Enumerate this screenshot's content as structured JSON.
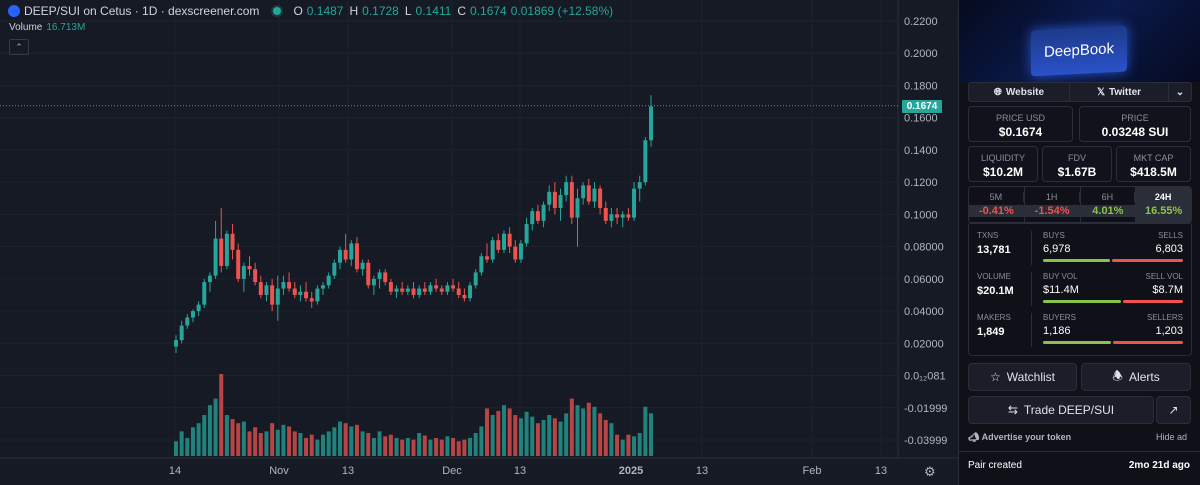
{
  "header": {
    "title": "DEEP/SUI on Cetus · 1D · dexscreener.com",
    "o_label": "O",
    "o_value": "0.1487",
    "h_label": "H",
    "h_value": "0.1728",
    "l_label": "L",
    "l_value": "0.1411",
    "c_label": "C",
    "c_value": "0.1674",
    "change": "0.01869 (+12.58%)",
    "volume_label": "Volume",
    "volume_value": "16.713M",
    "collapse_icon": "chevron-up-icon"
  },
  "chart_data": {
    "type": "candlestick",
    "x_tick_labels": [
      "14",
      "Nov",
      "13",
      "Dec",
      "13",
      "2025",
      "13",
      "Feb",
      "13"
    ],
    "y_tick_labels": [
      "0.2200",
      "0.2000",
      "0.1800",
      "0.1600",
      "0.1400",
      "0.1200",
      "0.1000",
      "0.08000",
      "0.06000",
      "0.04000",
      "0.02000",
      "0.0₁₂081",
      "-0.01999",
      "-0.03999"
    ],
    "ylim": [
      -0.045,
      0.225
    ],
    "current_price": "0.1674",
    "up_color": "#26a69a",
    "down_color": "#ef5350",
    "candles": [
      [
        0.018,
        0.025,
        0.014,
        0.022
      ],
      [
        0.022,
        0.034,
        0.02,
        0.031
      ],
      [
        0.031,
        0.038,
        0.029,
        0.036
      ],
      [
        0.036,
        0.041,
        0.033,
        0.04
      ],
      [
        0.04,
        0.046,
        0.037,
        0.044
      ],
      [
        0.044,
        0.06,
        0.042,
        0.058
      ],
      [
        0.058,
        0.064,
        0.052,
        0.062
      ],
      [
        0.062,
        0.096,
        0.06,
        0.085
      ],
      [
        0.085,
        0.104,
        0.064,
        0.068
      ],
      [
        0.068,
        0.09,
        0.066,
        0.088
      ],
      [
        0.088,
        0.094,
        0.072,
        0.078
      ],
      [
        0.078,
        0.082,
        0.058,
        0.06
      ],
      [
        0.06,
        0.07,
        0.052,
        0.068
      ],
      [
        0.068,
        0.074,
        0.062,
        0.066
      ],
      [
        0.066,
        0.07,
        0.056,
        0.058
      ],
      [
        0.058,
        0.062,
        0.048,
        0.05
      ],
      [
        0.05,
        0.058,
        0.046,
        0.056
      ],
      [
        0.056,
        0.06,
        0.04,
        0.044
      ],
      [
        0.044,
        0.062,
        0.034,
        0.054
      ],
      [
        0.054,
        0.062,
        0.05,
        0.058
      ],
      [
        0.058,
        0.064,
        0.052,
        0.054
      ],
      [
        0.054,
        0.058,
        0.048,
        0.05
      ],
      [
        0.05,
        0.056,
        0.046,
        0.052
      ],
      [
        0.052,
        0.058,
        0.046,
        0.048
      ],
      [
        0.048,
        0.052,
        0.042,
        0.046
      ],
      [
        0.046,
        0.056,
        0.044,
        0.054
      ],
      [
        0.054,
        0.058,
        0.05,
        0.056
      ],
      [
        0.056,
        0.064,
        0.054,
        0.062
      ],
      [
        0.062,
        0.072,
        0.06,
        0.07
      ],
      [
        0.07,
        0.08,
        0.066,
        0.078
      ],
      [
        0.078,
        0.088,
        0.07,
        0.072
      ],
      [
        0.072,
        0.084,
        0.068,
        0.082
      ],
      [
        0.082,
        0.086,
        0.064,
        0.066
      ],
      [
        0.066,
        0.072,
        0.062,
        0.07
      ],
      [
        0.07,
        0.072,
        0.054,
        0.056
      ],
      [
        0.056,
        0.062,
        0.05,
        0.06
      ],
      [
        0.06,
        0.066,
        0.054,
        0.064
      ],
      [
        0.064,
        0.066,
        0.056,
        0.058
      ],
      [
        0.058,
        0.06,
        0.05,
        0.052
      ],
      [
        0.052,
        0.056,
        0.048,
        0.054
      ],
      [
        0.054,
        0.058,
        0.05,
        0.052
      ],
      [
        0.052,
        0.056,
        0.05,
        0.054
      ],
      [
        0.054,
        0.058,
        0.048,
        0.05
      ],
      [
        0.05,
        0.056,
        0.048,
        0.054
      ],
      [
        0.054,
        0.058,
        0.05,
        0.052
      ],
      [
        0.052,
        0.058,
        0.05,
        0.056
      ],
      [
        0.056,
        0.06,
        0.052,
        0.054
      ],
      [
        0.054,
        0.056,
        0.05,
        0.052
      ],
      [
        0.052,
        0.058,
        0.05,
        0.056
      ],
      [
        0.056,
        0.06,
        0.052,
        0.054
      ],
      [
        0.054,
        0.058,
        0.048,
        0.05
      ],
      [
        0.05,
        0.054,
        0.046,
        0.048
      ],
      [
        0.048,
        0.058,
        0.046,
        0.056
      ],
      [
        0.056,
        0.066,
        0.054,
        0.064
      ],
      [
        0.064,
        0.076,
        0.062,
        0.074
      ],
      [
        0.074,
        0.082,
        0.07,
        0.072
      ],
      [
        0.072,
        0.086,
        0.07,
        0.084
      ],
      [
        0.084,
        0.088,
        0.076,
        0.078
      ],
      [
        0.078,
        0.09,
        0.076,
        0.088
      ],
      [
        0.088,
        0.092,
        0.076,
        0.08
      ],
      [
        0.08,
        0.084,
        0.07,
        0.072
      ],
      [
        0.072,
        0.084,
        0.07,
        0.082
      ],
      [
        0.082,
        0.098,
        0.08,
        0.094
      ],
      [
        0.094,
        0.104,
        0.09,
        0.102
      ],
      [
        0.102,
        0.106,
        0.094,
        0.096
      ],
      [
        0.096,
        0.108,
        0.092,
        0.106
      ],
      [
        0.106,
        0.118,
        0.102,
        0.114
      ],
      [
        0.114,
        0.12,
        0.1,
        0.104
      ],
      [
        0.104,
        0.116,
        0.096,
        0.112
      ],
      [
        0.112,
        0.124,
        0.108,
        0.12
      ],
      [
        0.12,
        0.124,
        0.094,
        0.098
      ],
      [
        0.098,
        0.116,
        0.08,
        0.11
      ],
      [
        0.11,
        0.12,
        0.106,
        0.118
      ],
      [
        0.118,
        0.122,
        0.106,
        0.108
      ],
      [
        0.108,
        0.12,
        0.104,
        0.116
      ],
      [
        0.116,
        0.118,
        0.1,
        0.104
      ],
      [
        0.104,
        0.108,
        0.094,
        0.096
      ],
      [
        0.096,
        0.104,
        0.092,
        0.1
      ],
      [
        0.1,
        0.104,
        0.094,
        0.098
      ],
      [
        0.098,
        0.102,
        0.092,
        0.1
      ],
      [
        0.1,
        0.104,
        0.096,
        0.098
      ],
      [
        0.098,
        0.12,
        0.096,
        0.116
      ],
      [
        0.116,
        0.124,
        0.108,
        0.12
      ],
      [
        0.12,
        0.148,
        0.118,
        0.146
      ],
      [
        0.146,
        0.174,
        0.142,
        0.167
      ]
    ],
    "volume": [
      0.18,
      0.3,
      0.22,
      0.35,
      0.4,
      0.5,
      0.62,
      0.7,
      1.0,
      0.5,
      0.45,
      0.4,
      0.42,
      0.3,
      0.35,
      0.28,
      0.3,
      0.4,
      0.32,
      0.38,
      0.36,
      0.3,
      0.28,
      0.22,
      0.26,
      0.2,
      0.26,
      0.3,
      0.35,
      0.42,
      0.4,
      0.36,
      0.38,
      0.3,
      0.28,
      0.22,
      0.3,
      0.24,
      0.26,
      0.22,
      0.2,
      0.22,
      0.2,
      0.28,
      0.25,
      0.2,
      0.22,
      0.2,
      0.24,
      0.22,
      0.18,
      0.2,
      0.22,
      0.28,
      0.36,
      0.58,
      0.5,
      0.55,
      0.62,
      0.58,
      0.5,
      0.46,
      0.54,
      0.48,
      0.4,
      0.44,
      0.5,
      0.46,
      0.42,
      0.52,
      0.7,
      0.62,
      0.58,
      0.65,
      0.6,
      0.52,
      0.44,
      0.4,
      0.26,
      0.2,
      0.26,
      0.24,
      0.28,
      0.6,
      0.52
    ]
  },
  "panel": {
    "banner_text": "DeepBook",
    "website_label": "Website",
    "twitter_label": "Twitter",
    "price_usd_label": "PRICE USD",
    "price_usd_value": "$0.1674",
    "price_label": "PRICE",
    "price_value": "0.03248 SUI",
    "liquidity_label": "LIQUIDITY",
    "liquidity_value": "$10.2M",
    "fdv_label": "FDV",
    "fdv_value": "$1.67B",
    "mktcap_label": "MKT CAP",
    "mktcap_value": "$418.5M",
    "timeframes": [
      {
        "name": "5M",
        "change": "-0.41%"
      },
      {
        "name": "1H",
        "change": "-1.54%"
      },
      {
        "name": "6H",
        "change": "4.01%"
      },
      {
        "name": "24H",
        "change": "16.55%"
      }
    ],
    "txns_label": "TXNS",
    "txns_value": "13,781",
    "buys_label": "BUYS",
    "buys_value": "6,978",
    "sells_label": "SELLS",
    "sells_value": "6,803",
    "volume_label": "VOLUME",
    "volume_value": "$20.1M",
    "buyvol_label": "BUY VOL",
    "buyvol_value": "$11.4M",
    "sellvol_label": "SELL VOL",
    "sellvol_value": "$8.7M",
    "makers_label": "MAKERS",
    "makers_value": "1,849",
    "buyers_label": "BUYERS",
    "buyers_value": "1,186",
    "sellers_label": "SELLERS",
    "sellers_value": "1,203",
    "watchlist_label": "Watchlist",
    "alerts_label": "Alerts",
    "trade_label": "Trade DEEP/SUI",
    "advertise_label": "Advertise your token",
    "hide_ad_label": "Hide ad",
    "pair_created_label": "Pair created",
    "pair_created_value": "2mo 21d ago"
  }
}
